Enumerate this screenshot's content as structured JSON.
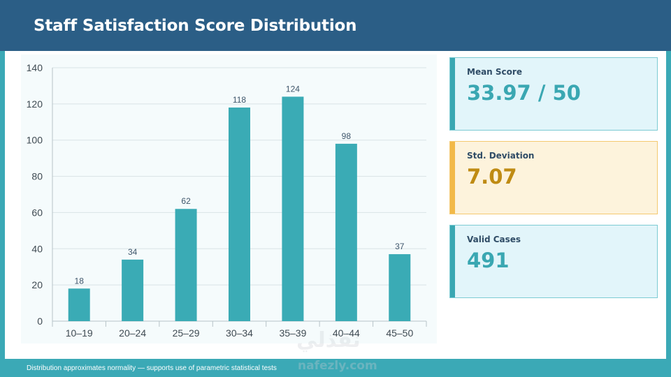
{
  "header": {
    "title": "Staff Satisfaction Score Distribution"
  },
  "cards": {
    "mean": {
      "label": "Mean Score",
      "value": "33.97 / 50"
    },
    "std": {
      "label": "Std. Deviation",
      "value": "7.07"
    },
    "valid": {
      "label": "Valid Cases",
      "value": "491"
    }
  },
  "footer": {
    "note": "Distribution approximates normality — supports use of parametric statistical tests"
  },
  "watermark": {
    "arabic": "نفذلي",
    "latin": "nafezly.com"
  },
  "colors": {
    "header": "#2b5e86",
    "bar": "#3aabb5",
    "accent": "#3ba9b6",
    "std_accent": "#f2b948"
  },
  "chart_data": {
    "type": "bar",
    "categories": [
      "10–19",
      "20–24",
      "25–29",
      "30–34",
      "35–39",
      "40–44",
      "45–50"
    ],
    "values": [
      18,
      34,
      62,
      118,
      124,
      98,
      37
    ],
    "title": "",
    "xlabel": "",
    "ylabel": "",
    "ylim": [
      0,
      140
    ],
    "yticks": [
      0,
      20,
      40,
      60,
      80,
      100,
      120,
      140
    ],
    "grid": true,
    "data_labels": true
  }
}
